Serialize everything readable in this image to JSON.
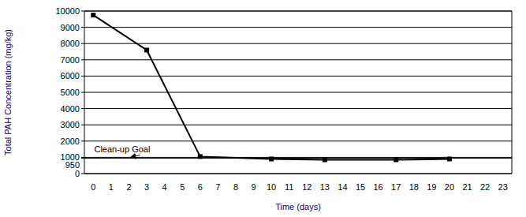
{
  "chart_data": {
    "type": "line",
    "x_label": "Time (days)",
    "y_label": "Total PAH Concentration (mg/kg)",
    "x": [
      0,
      3,
      6,
      10,
      13,
      17,
      20
    ],
    "values": [
      9750,
      7600,
      1050,
      900,
      850,
      850,
      900
    ],
    "color": "#000000",
    "marker": "square",
    "xlim": [
      -0.5,
      23.5
    ],
    "xticks": [
      0,
      1,
      2,
      3,
      4,
      5,
      6,
      7,
      8,
      9,
      10,
      11,
      12,
      13,
      14,
      15,
      16,
      17,
      18,
      19,
      20,
      21,
      22,
      23
    ],
    "ylim": [
      0,
      10000
    ],
    "yticks": [
      0,
      950,
      1000,
      2000,
      3000,
      4000,
      5000,
      6000,
      7000,
      8000,
      9000,
      10000
    ],
    "grid": true,
    "annotations": [
      {
        "text": "Clean-up Goal",
        "x": 2,
        "y": 950
      }
    ]
  }
}
